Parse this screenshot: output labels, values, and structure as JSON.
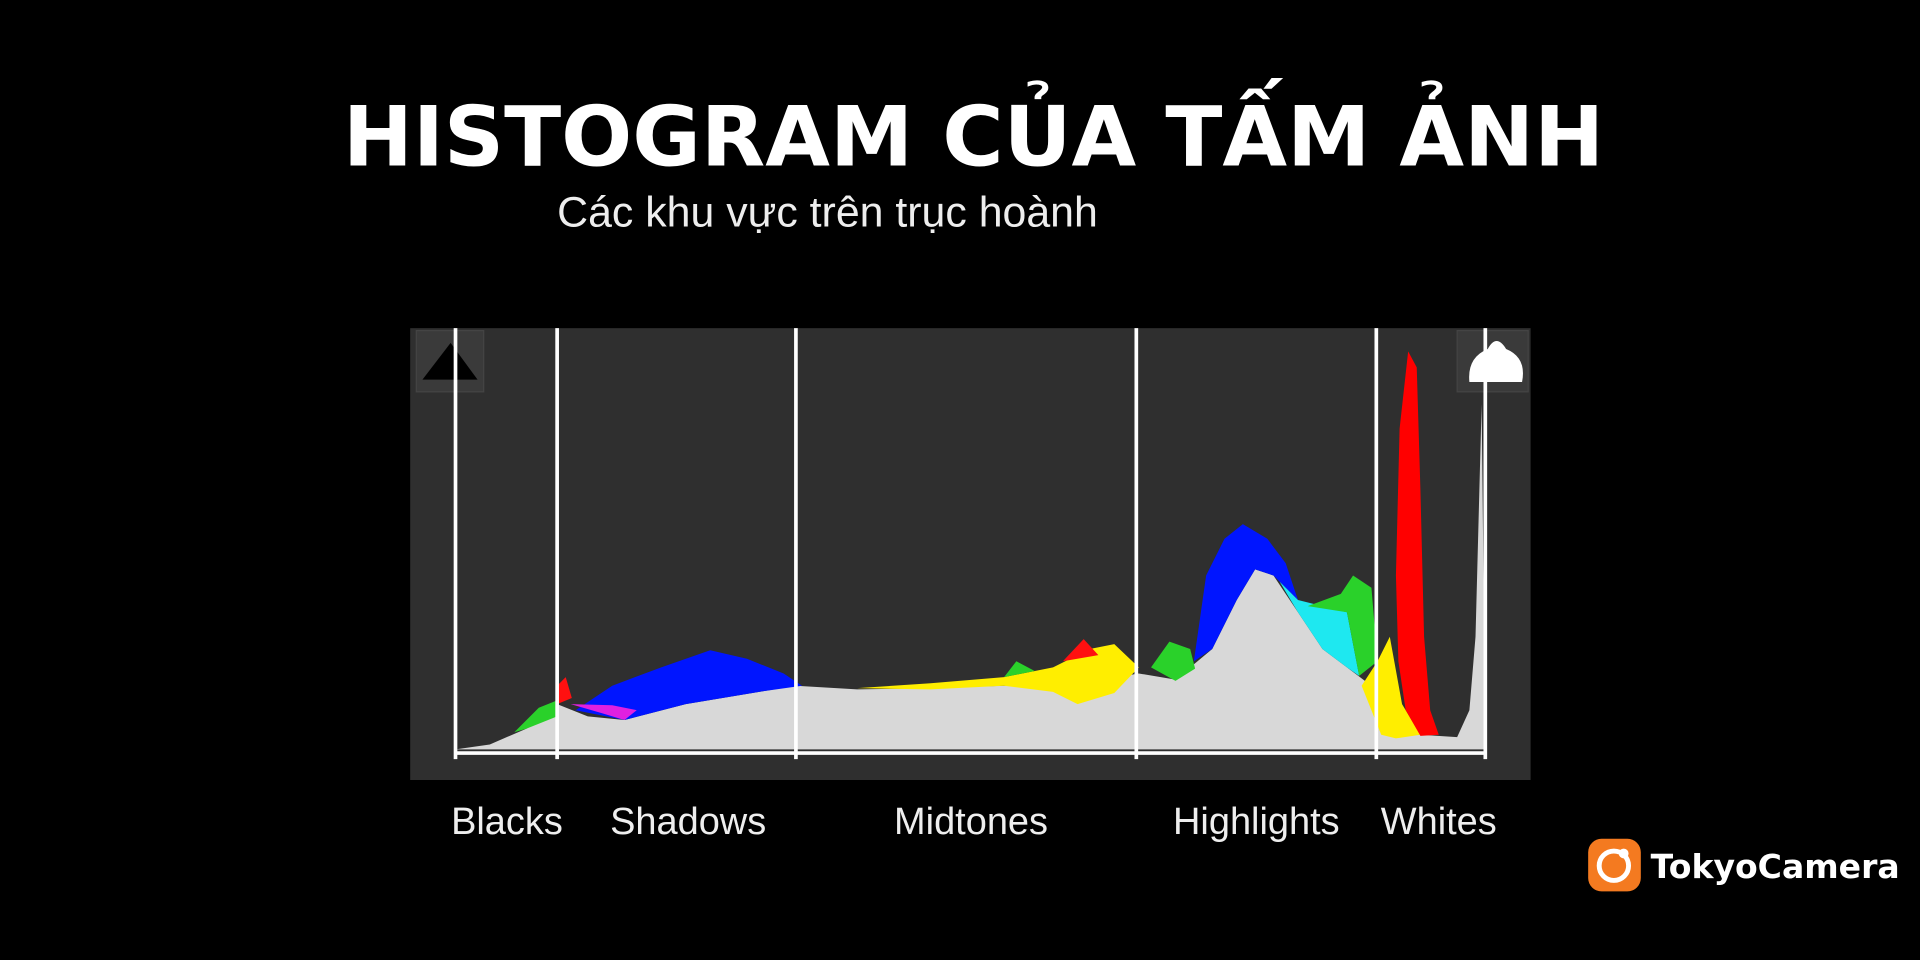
{
  "header": {
    "title": "HISTOGRAM CỦA TẤM ẢNH",
    "subtitle": "Các khu vực trên trục hoành"
  },
  "zones": [
    "Blacks",
    "Shadows",
    "Midtones",
    "Highlights",
    "Whites"
  ],
  "brand": "TokyoCamera"
}
